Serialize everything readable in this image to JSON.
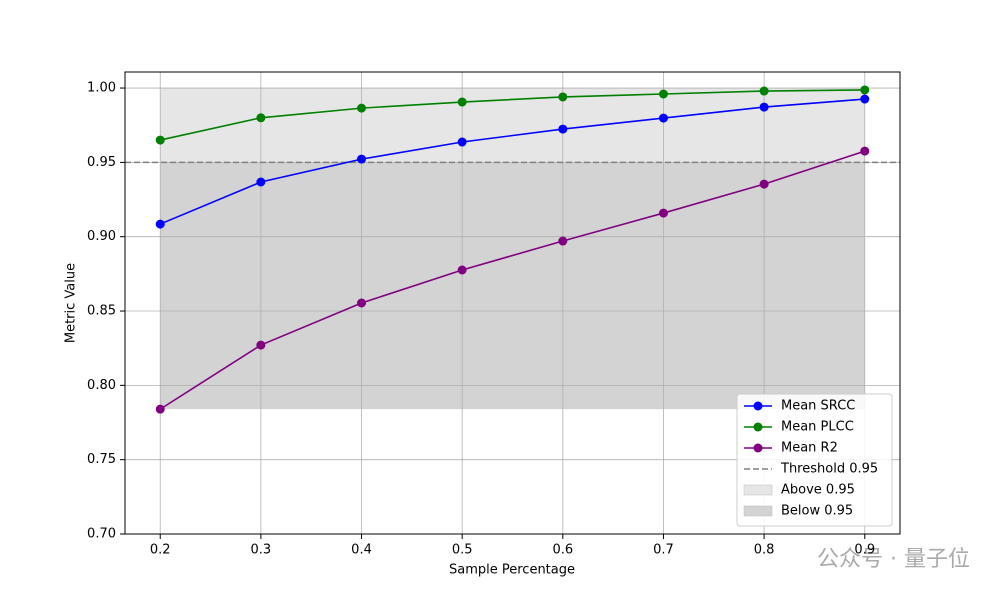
{
  "chart_data": {
    "type": "line",
    "x_label": "Sample Percentage",
    "y_label": "Metric Value",
    "x": [
      0.2,
      0.3,
      0.4,
      0.5,
      0.6,
      0.7,
      0.8,
      0.9
    ],
    "series": [
      {
        "name": "Mean SRCC",
        "color": "#0000ff",
        "values": [
          0.9085,
          0.9368,
          0.9522,
          0.9637,
          0.9724,
          0.9798,
          0.9872,
          0.9926
        ]
      },
      {
        "name": "Mean PLCC",
        "color": "#008000",
        "values": [
          0.965,
          0.98,
          0.9865,
          0.9906,
          0.994,
          0.996,
          0.998,
          0.9987
        ]
      },
      {
        "name": "Mean R2",
        "color": "#800080",
        "values": [
          0.784,
          0.8271,
          0.8554,
          0.8776,
          0.8971,
          0.9159,
          0.9354,
          0.9576
        ]
      }
    ],
    "threshold": {
      "name": "Threshold 0.95",
      "value": 0.95,
      "color": "#808080"
    },
    "bands": [
      {
        "name": "Above 0.95",
        "from": 0.95,
        "to": 1.0,
        "color": "#e6e6e6"
      },
      {
        "name": "Below 0.95",
        "from": 0.784,
        "to": 0.95,
        "color": "#d3d3d3"
      }
    ],
    "xlim": [
      0.165,
      0.935
    ],
    "ylim": [
      0.7,
      1.0108
    ],
    "xticks": [
      0.2,
      0.3,
      0.4,
      0.5,
      0.6,
      0.7,
      0.8,
      0.9
    ],
    "yticks": [
      {
        "value": 0.7,
        "label": "0.70"
      },
      0.75,
      {
        "value": 0.8,
        "label": "0.80"
      },
      0.85,
      {
        "value": 0.9,
        "label": "0.90"
      },
      0.95,
      {
        "value": 1.0,
        "label": "1.00"
      }
    ],
    "grid": true,
    "legend": "lower right",
    "watermark": "公众号 · 量子位"
  }
}
